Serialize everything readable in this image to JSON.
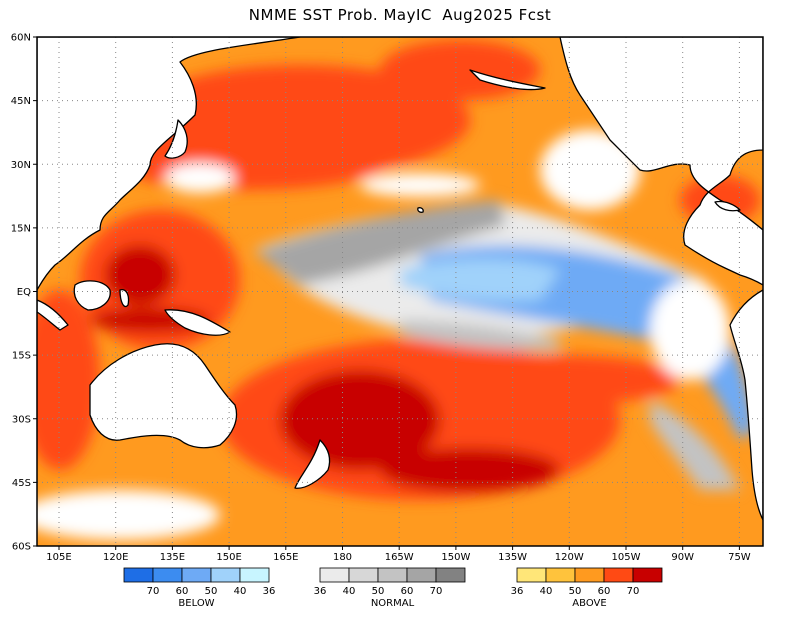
{
  "title": "NMME SST Prob. MayIC  Aug2025 Fcst",
  "map": {
    "lat_labels": [
      "60N",
      "45N",
      "30N",
      "15N",
      "EQ",
      "15S",
      "30S",
      "45S",
      "60S"
    ],
    "lon_labels": [
      "105E",
      "120E",
      "135E",
      "150E",
      "165E",
      "180",
      "165W",
      "150W",
      "135W",
      "120W",
      "105W",
      "90W",
      "75W"
    ],
    "ocean_colour": "#ff9a1f",
    "land_colour": "#ffffff",
    "coast_colour": "#000000"
  },
  "legend": {
    "below": {
      "label": "BELOW",
      "ticks": [
        "70",
        "60",
        "50",
        "40",
        "36"
      ],
      "colors": [
        "#1e6ee6",
        "#3c8cf0",
        "#6eaaf5",
        "#a0d2fa",
        "#c8f5ff"
      ]
    },
    "normal": {
      "label": "NORMAL",
      "ticks": [
        "36",
        "40",
        "50",
        "60",
        "70"
      ],
      "colors": [
        "#ebebeb",
        "#d7d7d7",
        "#c3c3c3",
        "#a5a5a5",
        "#828282"
      ]
    },
    "above": {
      "label": "ABOVE",
      "ticks": [
        "36",
        "40",
        "50",
        "60",
        "70"
      ],
      "colors": [
        "#ffe678",
        "#ffc33c",
        "#ff9a1f",
        "#ff4a14",
        "#c80000"
      ]
    }
  }
}
